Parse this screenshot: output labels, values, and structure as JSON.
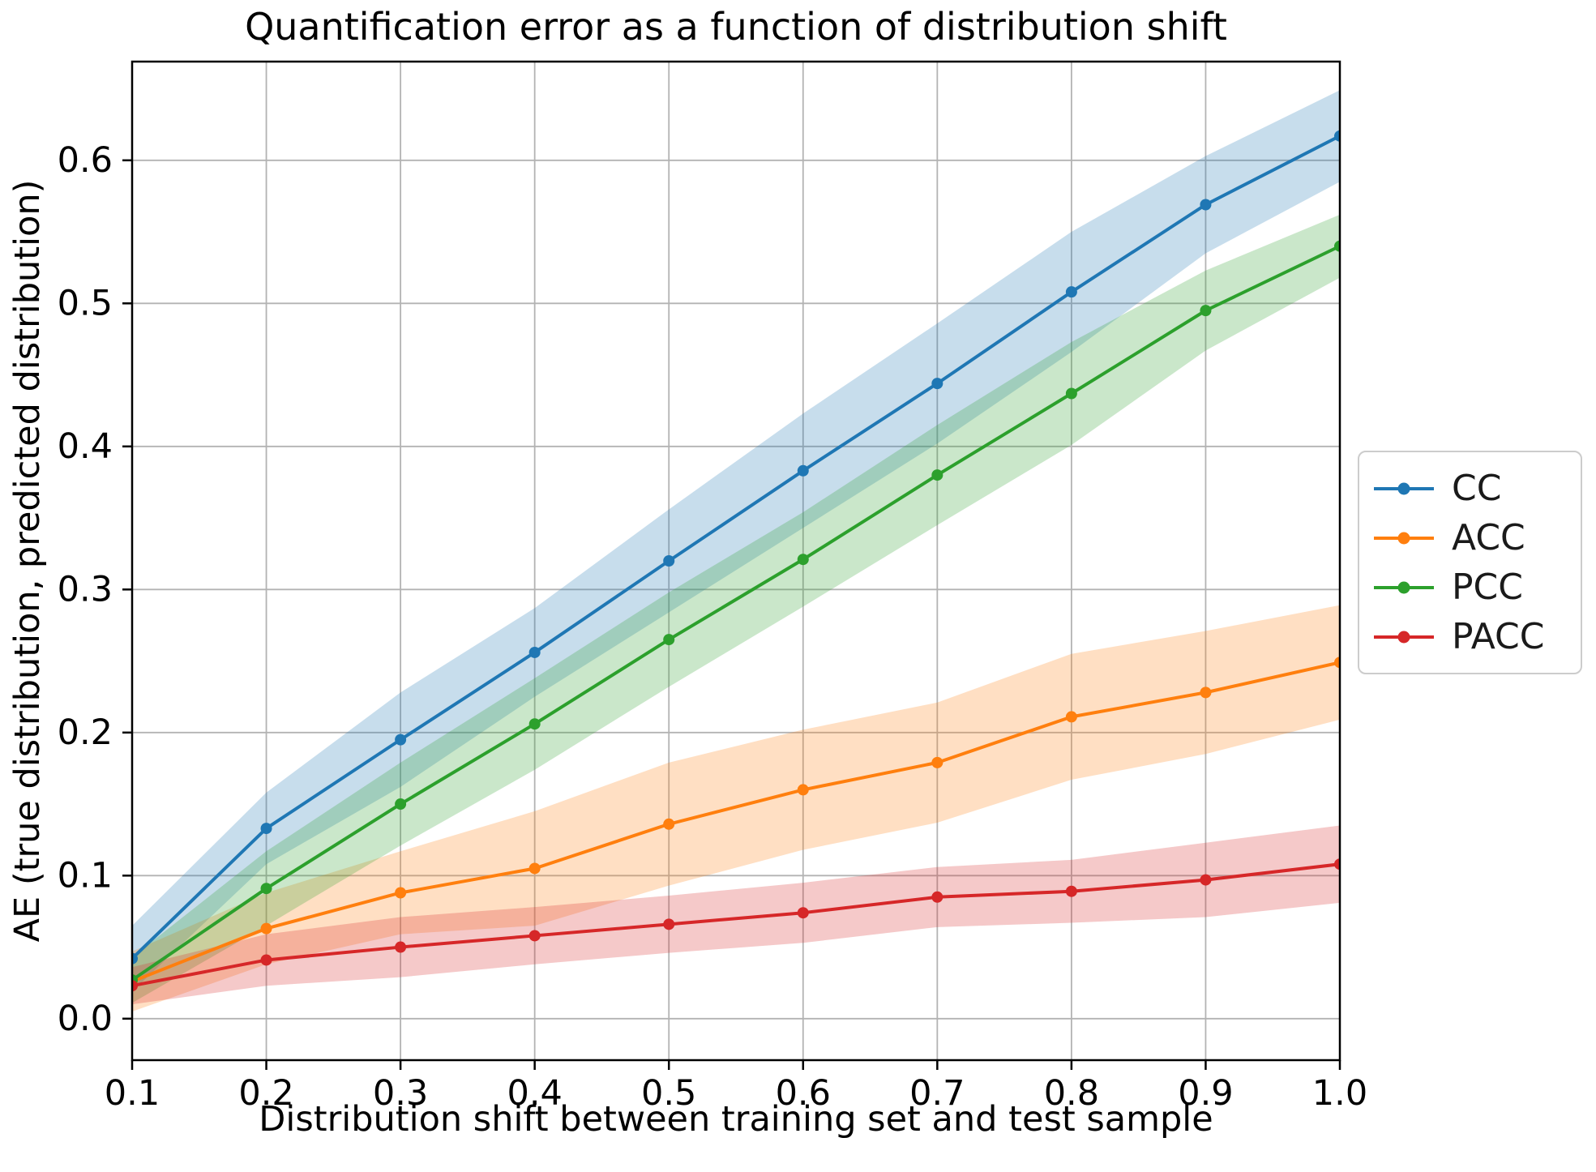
{
  "chart_data": {
    "type": "line",
    "title": "Quantification error as a function of distribution shift",
    "xlabel": "Distribution shift between training set and test sample",
    "ylabel": "AE (true distribution, predicted distribution)",
    "grid": true,
    "legend_position": "center-right-outside",
    "x": [
      0.1,
      0.2,
      0.3,
      0.4,
      0.5,
      0.6,
      0.7,
      0.8,
      0.9,
      1.0
    ],
    "xtick_labels": [
      "0.1",
      "0.2",
      "0.3",
      "0.4",
      "0.5",
      "0.6",
      "0.7",
      "0.8",
      "0.9",
      "1.0"
    ],
    "ytick_values": [
      0.0,
      0.1,
      0.2,
      0.3,
      0.4,
      0.5,
      0.6
    ],
    "ytick_labels": [
      "0.0",
      "0.1",
      "0.2",
      "0.3",
      "0.4",
      "0.5",
      "0.6"
    ],
    "xlim": [
      0.1,
      1.0
    ],
    "ylim": [
      -0.029,
      0.669
    ],
    "series": [
      {
        "name": "CC",
        "color": "#1f77b4",
        "values": [
          0.042,
          0.133,
          0.195,
          0.256,
          0.32,
          0.383,
          0.444,
          0.508,
          0.569,
          0.617
        ],
        "band_halfwidth": [
          0.023,
          0.025,
          0.033,
          0.031,
          0.036,
          0.04,
          0.042,
          0.042,
          0.034,
          0.032
        ]
      },
      {
        "name": "ACC",
        "color": "#ff7f0e",
        "values": [
          0.026,
          0.063,
          0.088,
          0.105,
          0.136,
          0.16,
          0.179,
          0.211,
          0.228,
          0.249
        ],
        "band_halfwidth": [
          0.021,
          0.025,
          0.029,
          0.04,
          0.043,
          0.042,
          0.042,
          0.044,
          0.043,
          0.04
        ]
      },
      {
        "name": "PCC",
        "color": "#2ca02c",
        "values": [
          0.027,
          0.091,
          0.15,
          0.206,
          0.265,
          0.321,
          0.38,
          0.437,
          0.495,
          0.54
        ],
        "band_halfwidth": [
          0.016,
          0.026,
          0.029,
          0.032,
          0.033,
          0.033,
          0.035,
          0.036,
          0.028,
          0.022
        ]
      },
      {
        "name": "PACC",
        "color": "#d62728",
        "values": [
          0.023,
          0.041,
          0.05,
          0.058,
          0.066,
          0.074,
          0.085,
          0.089,
          0.097,
          0.108
        ],
        "band_halfwidth": [
          0.013,
          0.018,
          0.021,
          0.02,
          0.02,
          0.021,
          0.021,
          0.022,
          0.026,
          0.027
        ]
      }
    ],
    "style": {
      "grid_color": "#b3b3b3",
      "spine_color": "#000000",
      "band_opacity": 0.25,
      "legend_border_color": "#cccccc",
      "text_color": "#000000"
    }
  }
}
